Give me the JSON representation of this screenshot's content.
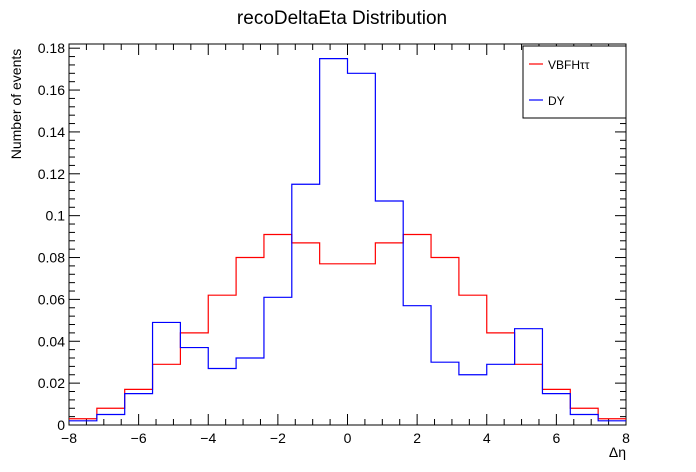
{
  "chart_data": {
    "type": "line",
    "title": "recoDeltaEta Distribution",
    "xlabel": "Δη",
    "ylabel": "Number of events",
    "xlim": [
      -8,
      8
    ],
    "ylim": [
      0,
      0.182
    ],
    "x_ticks": [
      -8,
      -6,
      -4,
      -2,
      0,
      2,
      4,
      6,
      8
    ],
    "x_tick_labels": [
      "−8",
      "−6",
      "−4",
      "−2",
      "0",
      "2",
      "4",
      "6",
      "8"
    ],
    "y_ticks": [
      0,
      0.02,
      0.04,
      0.06,
      0.08,
      0.1,
      0.12,
      0.14,
      0.16,
      0.18
    ],
    "y_tick_labels": [
      "0",
      "0.02",
      "0.04",
      "0.06",
      "0.08",
      "0.1",
      "0.12",
      "0.14",
      "0.16",
      "0.18"
    ],
    "grid": false,
    "legend_position": "top-right",
    "bin_edges": [
      -8,
      -7.2,
      -6.4,
      -5.6,
      -4.8,
      -4,
      -3.2,
      -2.4,
      -1.6,
      -0.8,
      0,
      0.8,
      1.6,
      2.4,
      3.2,
      4,
      4.8,
      5.6,
      6.4,
      7.2,
      8
    ],
    "series": [
      {
        "name": "VBFHττ",
        "color": "#ff0000",
        "values": [
          0.003,
          0.008,
          0.017,
          0.029,
          0.044,
          0.062,
          0.08,
          0.091,
          0.087,
          0.077,
          0.077,
          0.087,
          0.091,
          0.08,
          0.062,
          0.044,
          0.029,
          0.017,
          0.008,
          0.003
        ]
      },
      {
        "name": "DY",
        "color": "#0000ff",
        "values": [
          0.002,
          0.005,
          0.015,
          0.049,
          0.037,
          0.027,
          0.032,
          0.061,
          0.115,
          0.175,
          0.168,
          0.107,
          0.057,
          0.03,
          0.024,
          0.029,
          0.046,
          0.015,
          0.005,
          0.002
        ]
      }
    ]
  }
}
